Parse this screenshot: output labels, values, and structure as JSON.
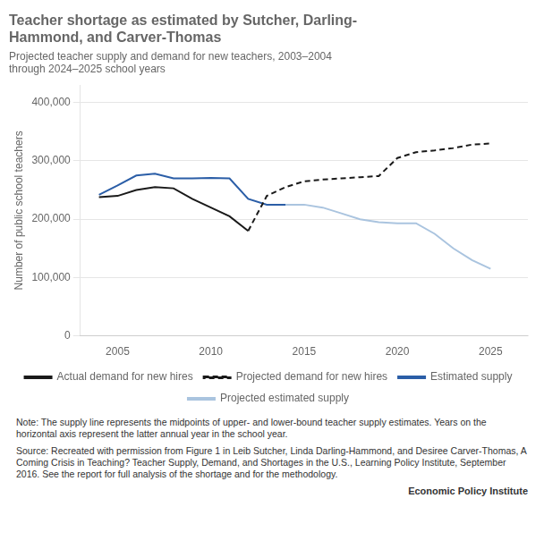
{
  "chart_data": {
    "type": "line",
    "title": "Teacher shortage as estimated by Sutcher, Darling-\nHammond, and Carver-Thomas",
    "subtitle": "Projected teacher supply and demand for new teachers, 2003–2004\nthrough 2024–2025 school years",
    "y_label": "Number of public school teachers",
    "xlim": [
      2003,
      2027
    ],
    "xticks": [
      2005,
      2010,
      2015,
      2020,
      2025
    ],
    "ylim": [
      0,
      430000
    ],
    "yticks": [
      0,
      {
        "value": 100000,
        "label": "100,000"
      },
      {
        "value": 200000,
        "label": "200,000"
      },
      {
        "value": 300000,
        "label": "300,000"
      },
      {
        "value": 400000,
        "label": "400,000"
      }
    ],
    "grid": "y",
    "series": [
      {
        "name": "Actual demand for new hires",
        "color": "#1a1a1a",
        "line_style": "solid",
        "x": [
          2004,
          2005,
          2006,
          2007,
          2008,
          2009,
          2010,
          2011,
          2012
        ],
        "values": [
          238000,
          240000,
          250000,
          255000,
          253000,
          235000,
          220000,
          205000,
          180000
        ]
      },
      {
        "name": "Projected demand for new hires",
        "color": "#1a1a1a",
        "line_style": "dashed",
        "x": [
          2012,
          2013,
          2014,
          2015,
          2016,
          2017,
          2018,
          2019,
          2020,
          2021,
          2022,
          2023,
          2024,
          2025
        ],
        "values": [
          180000,
          240000,
          255000,
          265000,
          268000,
          270000,
          272000,
          274000,
          305000,
          315000,
          318000,
          322000,
          328000,
          330000
        ]
      },
      {
        "name": "Estimated supply",
        "color": "#2b5ea7",
        "line_style": "solid",
        "x": [
          2004,
          2005,
          2006,
          2007,
          2008,
          2009,
          2010,
          2011,
          2012,
          2013,
          2014
        ],
        "values": [
          242000,
          258000,
          275000,
          278000,
          270000,
          270000,
          271000,
          270000,
          235000,
          225000,
          225000
        ]
      },
      {
        "name": "Projected estimated supply",
        "color": "#aac4df",
        "line_style": "solid",
        "x": [
          2014,
          2015,
          2016,
          2017,
          2018,
          2019,
          2020,
          2021,
          2022,
          2023,
          2024,
          2025
        ],
        "values": [
          225000,
          225000,
          220000,
          210000,
          200000,
          195000,
          193000,
          193000,
          175000,
          150000,
          130000,
          115000
        ]
      }
    ],
    "legend": "bottom",
    "annotations": [
      "Note: The supply line represents the midpoints of upper- and lower-bound teacher supply estimates. Years on the horizontal axis represent the latter annual year in the school year.",
      "Source: Recreated with permission from Figure 1 in Leib Sutcher, Linda Darling-Hammond, and Desiree Carver-Thomas, A Coming Crisis in Teaching? Teacher Supply, Demand, and Shortages in the U.S., Learning Policy Institute, September 2016. See the report for full analysis of the shortage and for the methodology.",
      "Economic Policy Institute"
    ]
  }
}
